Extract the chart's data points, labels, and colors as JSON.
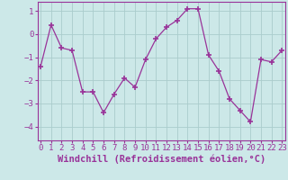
{
  "x": [
    0,
    1,
    2,
    3,
    4,
    5,
    6,
    7,
    8,
    9,
    10,
    11,
    12,
    13,
    14,
    15,
    16,
    17,
    18,
    19,
    20,
    21,
    22,
    23
  ],
  "y": [
    -1.4,
    0.4,
    -0.6,
    -0.7,
    -2.5,
    -2.5,
    -3.4,
    -2.6,
    -1.9,
    -2.3,
    -1.1,
    -0.2,
    0.3,
    0.6,
    1.1,
    1.1,
    -0.9,
    -1.6,
    -2.8,
    -3.3,
    -3.8,
    -1.1,
    -1.2,
    -0.7
  ],
  "line_color": "#993399",
  "marker": "+",
  "marker_size": 4,
  "marker_lw": 1.2,
  "bg_color": "#cce8e8",
  "grid_color": "#aacccc",
  "xlabel": "Windchill (Refroidissement éolien,°C)",
  "xlabel_fontsize": 7.5,
  "tick_fontsize": 6.5,
  "ylim": [
    -4.6,
    1.4
  ],
  "yticks": [
    -4,
    -3,
    -2,
    -1,
    0,
    1
  ],
  "xlim": [
    -0.3,
    23.3
  ]
}
